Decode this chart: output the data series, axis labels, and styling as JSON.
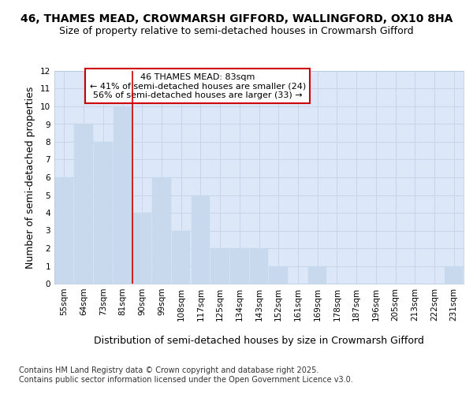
{
  "title_line1": "46, THAMES MEAD, CROWMARSH GIFFORD, WALLINGFORD, OX10 8HA",
  "title_line2": "Size of property relative to semi-detached houses in Crowmarsh Gifford",
  "xlabel": "Distribution of semi-detached houses by size in Crowmarsh Gifford",
  "ylabel": "Number of semi-detached properties",
  "categories": [
    "55sqm",
    "64sqm",
    "73sqm",
    "81sqm",
    "90sqm",
    "99sqm",
    "108sqm",
    "117sqm",
    "125sqm",
    "134sqm",
    "143sqm",
    "152sqm",
    "161sqm",
    "169sqm",
    "178sqm",
    "187sqm",
    "196sqm",
    "205sqm",
    "213sqm",
    "222sqm",
    "231sqm"
  ],
  "values": [
    6,
    9,
    8,
    10,
    4,
    6,
    3,
    5,
    2,
    2,
    2,
    1,
    0,
    1,
    0,
    0,
    0,
    0,
    0,
    0,
    1
  ],
  "bar_color": "#c8d9ee",
  "bar_edge_color": "#c8d9ee",
  "red_line_x": 3.5,
  "annotation_title": "46 THAMES MEAD: 83sqm",
  "annotation_line1": "← 41% of semi-detached houses are smaller (24)",
  "annotation_line2": "56% of semi-detached houses are larger (33) →",
  "annotation_box_color": "#ffffff",
  "annotation_box_edge_color": "#cc0000",
  "red_line_color": "#cc0000",
  "ylim": [
    0,
    12
  ],
  "yticks": [
    0,
    1,
    2,
    3,
    4,
    5,
    6,
    7,
    8,
    9,
    10,
    11,
    12
  ],
  "grid_color": "#c8d4e8",
  "background_color": "#dce8f8",
  "footer": "Contains HM Land Registry data © Crown copyright and database right 2025.\nContains public sector information licensed under the Open Government Licence v3.0.",
  "title_fontsize": 10,
  "subtitle_fontsize": 9,
  "axis_label_fontsize": 9,
  "tick_fontsize": 7.5,
  "annotation_fontsize": 8,
  "footer_fontsize": 7
}
